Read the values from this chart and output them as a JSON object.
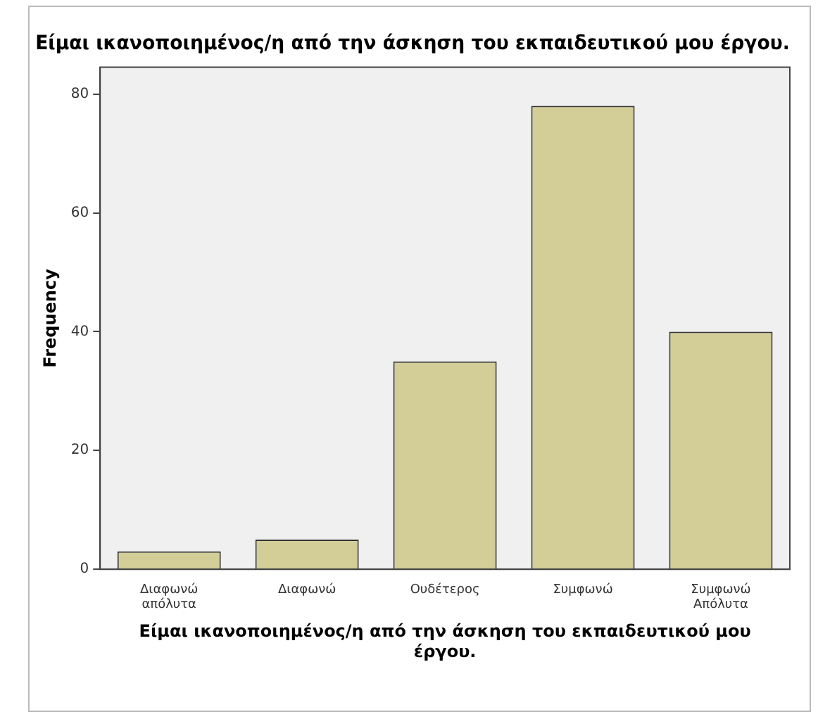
{
  "chart_data": {
    "type": "bar",
    "title": "Είμαι ικανοποιημένος/η από την άσκηση του εκπαιδευτικού μου έργου.",
    "xlabel": "Είμαι ικανοποιημένος/η από την άσκηση του εκπαιδευτικού μου έργου.",
    "ylabel": "Frequency",
    "categories": [
      "Διαφωνώ απόλυτα",
      "Διαφωνώ",
      "Ουδέτερος",
      "Συμφωνώ",
      "Συμφωνώ Απόλυτα"
    ],
    "values": [
      3,
      5,
      35,
      78,
      40
    ],
    "color": "#d3ce97",
    "ylim": [
      0,
      84.5
    ],
    "yticks": [
      0,
      20,
      40,
      60,
      80
    ],
    "grid": false,
    "legend": false
  }
}
